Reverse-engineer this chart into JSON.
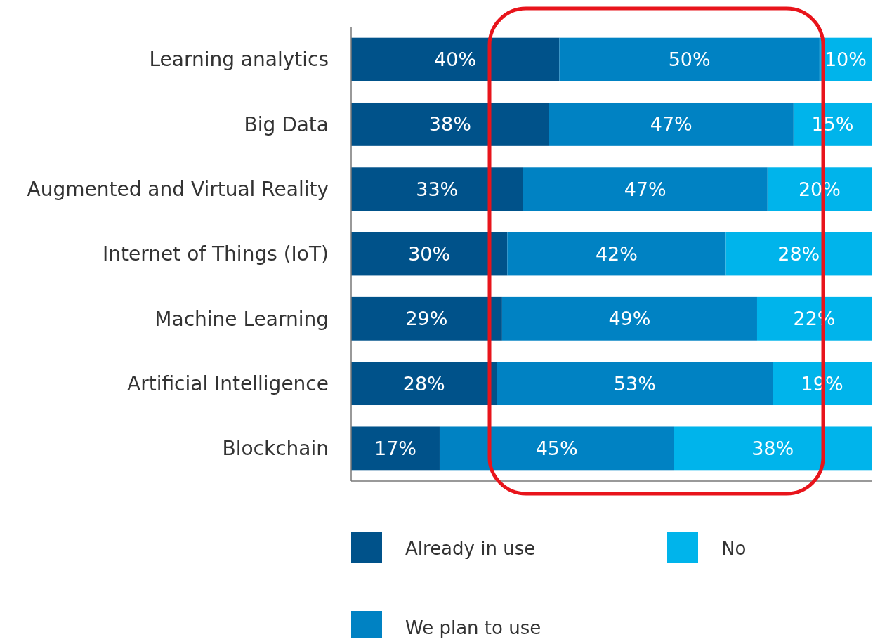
{
  "chart_data": {
    "type": "bar",
    "orientation": "horizontal",
    "stacked": true,
    "categories": [
      "Learning analytics",
      "Big Data",
      "Augmented and Virtual Reality",
      "Internet of Things (IoT)",
      "Machine Learning",
      "Artificial Intelligence",
      "Blockchain"
    ],
    "series": [
      {
        "name": "Already in use",
        "color": "#00528a",
        "values": [
          40,
          38,
          33,
          30,
          29,
          28,
          17
        ],
        "value_labels": [
          "40%",
          "38%",
          "33%",
          "30%",
          "29%",
          "28%",
          "17%"
        ]
      },
      {
        "name": "We plan to use",
        "color": "#0082c3",
        "values": [
          50,
          47,
          47,
          42,
          49,
          53,
          45
        ],
        "value_labels": [
          "50%",
          "47%",
          "47%",
          "42%",
          "49%",
          "53%",
          "45%"
        ]
      },
      {
        "name": "No",
        "color": "#00b4eb",
        "values": [
          10,
          15,
          20,
          28,
          22,
          19,
          38
        ],
        "value_labels": [
          "10%",
          "15%",
          "20%",
          "28%",
          "22%",
          "19%",
          "38%"
        ]
      }
    ],
    "tick_labels": "y",
    "legend": "bottom"
  }
}
